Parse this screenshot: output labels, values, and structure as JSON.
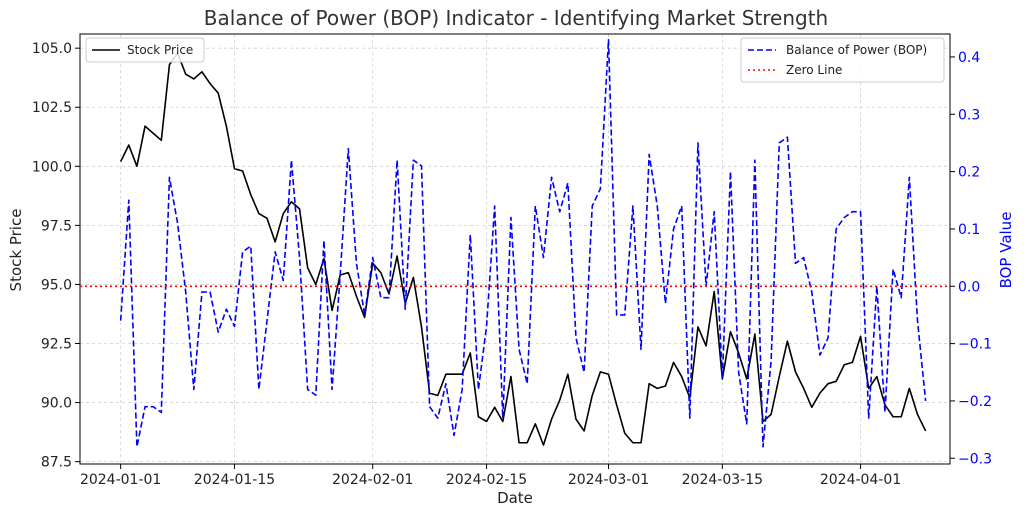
{
  "chart_data": {
    "type": "line",
    "title": "Balance of Power (BOP) Indicator - Identifying Market Strength",
    "xlabel": "Date",
    "ylabel_left": "Stock Price",
    "ylabel_right": "BOP Value",
    "x_ticks": [
      "2024-01-01",
      "2024-01-15",
      "2024-02-01",
      "2024-02-15",
      "2024-03-01",
      "2024-03-15",
      "2024-04-01"
    ],
    "y_left_ticks": [
      "87.5",
      "90.0",
      "92.5",
      "95.0",
      "97.5",
      "100.0",
      "102.5",
      "105.0"
    ],
    "y_right_ticks": [
      "−0.3",
      "−0.2",
      "−0.1",
      "0.0",
      "0.1",
      "0.2",
      "0.3",
      "0.4"
    ],
    "x_start": "2024-01-01",
    "x_range": [
      "2023-12-27",
      "2024-04-12"
    ],
    "ylim_left": [
      87.4,
      105.6
    ],
    "ylim_right": [
      -0.31,
      0.44
    ],
    "grid": true,
    "series": [
      {
        "name": "Stock Price",
        "axis": "left",
        "color": "#000000",
        "style": "solid",
        "values": [
          100.2,
          100.9,
          100.0,
          101.7,
          101.4,
          101.1,
          104.3,
          104.8,
          103.9,
          103.7,
          104.0,
          103.5,
          103.1,
          101.7,
          99.9,
          99.8,
          98.8,
          98.0,
          97.8,
          96.8,
          98.0,
          98.5,
          98.2,
          95.7,
          95.0,
          96.1,
          93.9,
          95.4,
          95.5,
          94.5,
          93.6,
          95.9,
          95.5,
          94.6,
          96.2,
          94.2,
          95.3,
          93.2,
          90.4,
          90.3,
          91.2,
          91.2,
          91.2,
          92.1,
          89.4,
          89.2,
          89.8,
          89.2,
          91.1,
          88.3,
          88.3,
          89.1,
          88.2,
          89.3,
          90.1,
          91.2,
          89.3,
          88.8,
          90.3,
          91.3,
          91.2,
          89.9,
          88.7,
          88.3,
          88.3,
          90.8,
          90.6,
          90.7,
          91.7,
          91.1,
          90.2,
          93.2,
          92.4,
          94.7,
          91.0,
          93.0,
          92.1,
          91.0,
          92.9,
          89.2,
          89.5,
          91.1,
          92.6,
          91.3,
          90.6,
          89.8,
          90.4,
          90.8,
          90.9,
          91.6,
          91.7,
          92.8,
          90.6,
          91.1,
          89.9,
          89.4,
          89.4,
          90.6,
          89.5,
          88.8
        ]
      },
      {
        "name": "Balance of Power (BOP)",
        "axis": "right",
        "color": "#0000ff",
        "style": "dashed",
        "values": [
          -0.06,
          0.15,
          -0.28,
          -0.21,
          -0.21,
          -0.22,
          0.19,
          0.11,
          -0.01,
          -0.18,
          -0.01,
          -0.01,
          -0.08,
          -0.04,
          -0.07,
          0.06,
          0.07,
          -0.18,
          -0.06,
          0.06,
          0.01,
          0.22,
          0.05,
          -0.18,
          -0.19,
          0.08,
          -0.18,
          0.02,
          0.24,
          0.04,
          -0.05,
          0.05,
          -0.02,
          -0.02,
          0.22,
          -0.04,
          0.22,
          0.21,
          -0.21,
          -0.23,
          -0.17,
          -0.26,
          -0.18,
          0.09,
          -0.18,
          -0.07,
          0.14,
          -0.23,
          0.12,
          -0.11,
          -0.17,
          0.14,
          0.05,
          0.19,
          0.13,
          0.18,
          -0.09,
          -0.15,
          0.14,
          0.17,
          0.43,
          -0.05,
          -0.05,
          0.14,
          -0.11,
          0.23,
          0.14,
          -0.03,
          0.1,
          0.14,
          -0.23,
          0.25,
          0.0,
          0.13,
          -0.16,
          0.2,
          -0.15,
          -0.24,
          0.22,
          -0.28,
          -0.13,
          0.25,
          0.26,
          0.04,
          0.05,
          -0.01,
          -0.12,
          -0.09,
          0.1,
          0.12,
          0.13,
          0.13,
          -0.23,
          0.0,
          -0.22,
          0.03,
          -0.02,
          0.19,
          -0.06,
          -0.2
        ]
      },
      {
        "name": "Zero Line",
        "axis": "right",
        "color": "#ff0000",
        "style": "dotted",
        "constant": 0.0
      }
    ],
    "legend_left": {
      "placement": "top-left",
      "entries": [
        "Stock Price"
      ]
    },
    "legend_right": {
      "placement": "top-right",
      "entries": [
        "Balance of Power (BOP)",
        "Zero Line"
      ]
    }
  }
}
